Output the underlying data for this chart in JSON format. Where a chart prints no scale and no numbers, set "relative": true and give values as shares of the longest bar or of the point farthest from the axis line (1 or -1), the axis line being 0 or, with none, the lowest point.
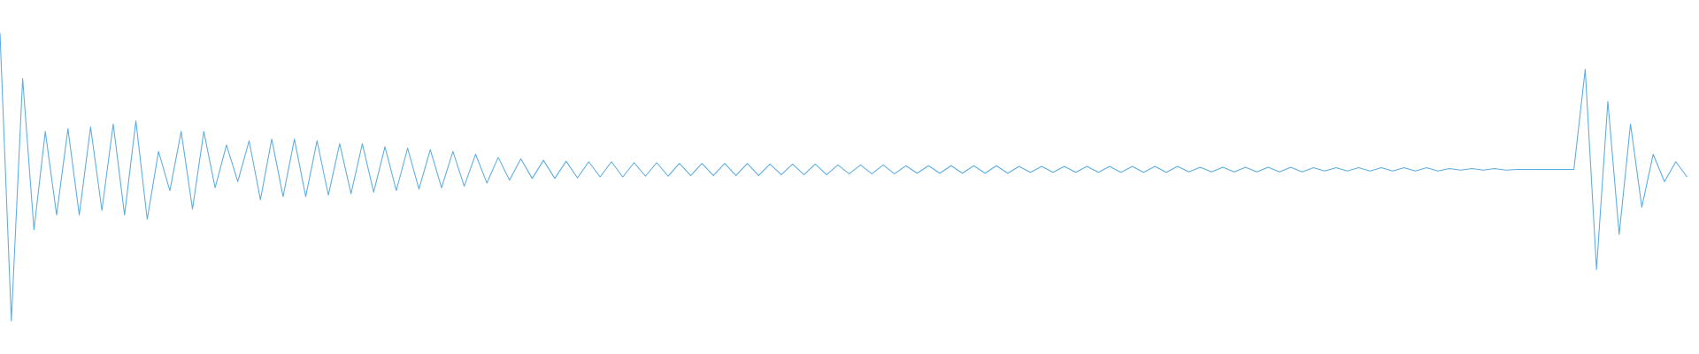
{
  "chart_data": {
    "type": "line",
    "relative": true,
    "color": "#5dade2",
    "marker": "none",
    "categories": [
      null,
      null,
      null,
      null,
      null,
      null,
      null,
      null,
      null,
      null,
      null,
      null,
      null,
      null,
      null,
      null,
      null,
      null,
      null,
      null,
      null,
      null,
      null,
      null,
      null,
      null,
      null,
      null,
      null,
      null,
      null,
      null,
      null,
      null,
      null,
      null,
      null,
      null,
      null,
      null,
      null,
      null,
      null,
      null,
      null,
      null,
      null,
      null,
      null,
      null,
      null,
      null,
      null,
      null,
      null,
      null,
      null,
      null,
      null,
      null,
      null,
      null,
      null,
      null,
      null,
      null,
      null,
      null,
      null,
      null,
      null,
      null,
      null,
      null,
      null,
      null,
      null,
      null,
      null,
      null,
      null,
      null,
      null,
      null,
      null,
      null,
      null,
      null,
      null,
      null,
      null,
      null,
      null,
      null,
      null,
      null,
      null,
      null,
      null,
      null,
      null,
      null,
      null,
      null,
      null,
      null,
      null,
      null,
      null,
      null,
      null,
      null,
      null,
      null,
      null,
      null,
      null,
      null,
      null,
      null,
      null,
      null,
      null,
      null,
      null,
      null,
      null,
      null,
      null,
      null,
      null,
      null,
      null,
      null,
      null,
      null,
      null,
      null,
      null,
      null,
      null,
      null,
      null,
      null,
      null,
      null,
      null,
      null,
      null,
      null
    ],
    "values": [
      1.0,
      0,
      0.842,
      0.316,
      0.658,
      0.368,
      0.668,
      0.368,
      0.674,
      0.384,
      0.684,
      0.368,
      0.695,
      0.353,
      0.589,
      0.453,
      0.658,
      0.389,
      0.658,
      0.463,
      0.611,
      0.484,
      0.626,
      0.421,
      0.632,
      0.432,
      0.632,
      0.432,
      0.626,
      0.437,
      0.616,
      0.442,
      0.616,
      0.447,
      0.605,
      0.453,
      0.6,
      0.458,
      0.595,
      0.463,
      0.589,
      0.468,
      0.579,
      0.479,
      0.568,
      0.489,
      0.563,
      0.495,
      0.558,
      0.495,
      0.555,
      0.497,
      0.553,
      0.5,
      0.553,
      0.5,
      0.55,
      0.503,
      0.55,
      0.503,
      0.547,
      0.505,
      0.547,
      0.505,
      0.547,
      0.505,
      0.547,
      0.505,
      0.545,
      0.508,
      0.545,
      0.508,
      0.545,
      0.508,
      0.542,
      0.511,
      0.542,
      0.511,
      0.542,
      0.511,
      0.539,
      0.513,
      0.539,
      0.513,
      0.539,
      0.513,
      0.539,
      0.513,
      0.539,
      0.513,
      0.537,
      0.516,
      0.537,
      0.516,
      0.537,
      0.516,
      0.537,
      0.516,
      0.537,
      0.516,
      0.537,
      0.516,
      0.537,
      0.516,
      0.537,
      0.518,
      0.534,
      0.518,
      0.534,
      0.518,
      0.534,
      0.518,
      0.534,
      0.518,
      0.534,
      0.518,
      0.532,
      0.521,
      0.532,
      0.521,
      0.532,
      0.521,
      0.532,
      0.521,
      0.532,
      0.521,
      0.532,
      0.521,
      0.529,
      0.524,
      0.529,
      0.524,
      0.529,
      0.524,
      0.526,
      0.526,
      0.526,
      0.526,
      0.526,
      0.526,
      0.874,
      0.179,
      0.763,
      0.3,
      0.684,
      0.395,
      0.579,
      0.484,
      0.553,
      0.5
    ]
  }
}
